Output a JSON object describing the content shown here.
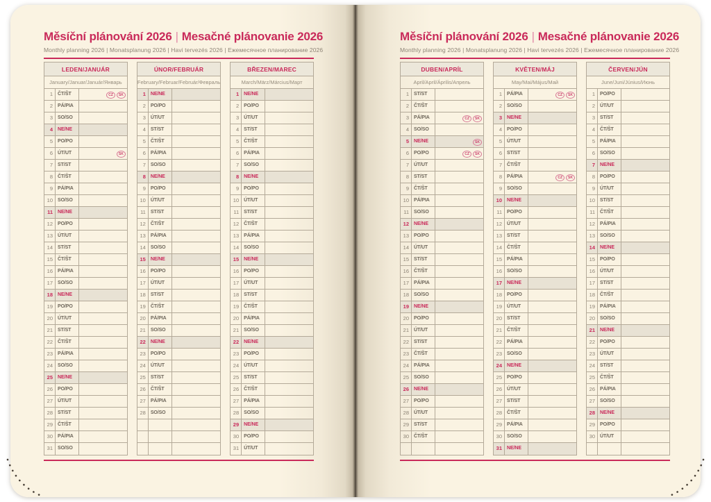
{
  "header": {
    "title_primary": "Měsíční plánování 2026",
    "title_separator": "|",
    "title_secondary": "Mesačné plánovanie 2026",
    "subtitle": "Monthly planning 2026 | Monatsplanung 2026 | Havi tervezés 2026 | Ежемесячное планирование 2026"
  },
  "table": {
    "rows_per_column": 31,
    "sunday_label": "NE/NE"
  },
  "colors": {
    "accent": "#c92a5a",
    "page": "#faf3e2",
    "sunday_bg": "#e8e2d4",
    "border": "#b3a998",
    "header_bg": "#ece7da",
    "day_text": "#6e665a",
    "number_text": "#8a8173",
    "muted_text": "#8d8476",
    "badge": "#cd3f6d"
  },
  "pages": [
    {
      "side": "left",
      "months": [
        {
          "header": "LEDEN/JANUÁR",
          "subheader": "January/Januar/Január/Январь",
          "rows": [
            {
              "n": 1,
              "d": "ČT/ŠT",
              "b": [
                "CZ",
                "SK"
              ]
            },
            {
              "n": 2,
              "d": "PÁ/PIA"
            },
            {
              "n": 3,
              "d": "SO/SO"
            },
            {
              "n": 4,
              "d": "NE/NE"
            },
            {
              "n": 5,
              "d": "PO/PO"
            },
            {
              "n": 6,
              "d": "ÚT/UT",
              "b": [
                "SK"
              ]
            },
            {
              "n": 7,
              "d": "ST/ST"
            },
            {
              "n": 8,
              "d": "ČT/ŠT"
            },
            {
              "n": 9,
              "d": "PÁ/PIA"
            },
            {
              "n": 10,
              "d": "SO/SO"
            },
            {
              "n": 11,
              "d": "NE/NE"
            },
            {
              "n": 12,
              "d": "PO/PO"
            },
            {
              "n": 13,
              "d": "ÚT/UT"
            },
            {
              "n": 14,
              "d": "ST/ST"
            },
            {
              "n": 15,
              "d": "ČT/ŠT"
            },
            {
              "n": 16,
              "d": "PÁ/PIA"
            },
            {
              "n": 17,
              "d": "SO/SO"
            },
            {
              "n": 18,
              "d": "NE/NE"
            },
            {
              "n": 19,
              "d": "PO/PO"
            },
            {
              "n": 20,
              "d": "ÚT/UT"
            },
            {
              "n": 21,
              "d": "ST/ST"
            },
            {
              "n": 22,
              "d": "ČT/ŠT"
            },
            {
              "n": 23,
              "d": "PÁ/PIA"
            },
            {
              "n": 24,
              "d": "SO/SO"
            },
            {
              "n": 25,
              "d": "NE/NE"
            },
            {
              "n": 26,
              "d": "PO/PO"
            },
            {
              "n": 27,
              "d": "ÚT/UT"
            },
            {
              "n": 28,
              "d": "ST/ST"
            },
            {
              "n": 29,
              "d": "ČT/ŠT"
            },
            {
              "n": 30,
              "d": "PÁ/PIA"
            },
            {
              "n": 31,
              "d": "SO/SO"
            }
          ]
        },
        {
          "header": "ÚNOR/FEBRUÁR",
          "subheader": "February/Februar/Február/Февраль",
          "rows": [
            {
              "n": 1,
              "d": "NE/NE"
            },
            {
              "n": 2,
              "d": "PO/PO"
            },
            {
              "n": 3,
              "d": "ÚT/UT"
            },
            {
              "n": 4,
              "d": "ST/ST"
            },
            {
              "n": 5,
              "d": "ČT/ŠT"
            },
            {
              "n": 6,
              "d": "PÁ/PIA"
            },
            {
              "n": 7,
              "d": "SO/SO"
            },
            {
              "n": 8,
              "d": "NE/NE"
            },
            {
              "n": 9,
              "d": "PO/PO"
            },
            {
              "n": 10,
              "d": "ÚT/UT"
            },
            {
              "n": 11,
              "d": "ST/ST"
            },
            {
              "n": 12,
              "d": "ČT/ŠT"
            },
            {
              "n": 13,
              "d": "PÁ/PIA"
            },
            {
              "n": 14,
              "d": "SO/SO"
            },
            {
              "n": 15,
              "d": "NE/NE"
            },
            {
              "n": 16,
              "d": "PO/PO"
            },
            {
              "n": 17,
              "d": "ÚT/UT"
            },
            {
              "n": 18,
              "d": "ST/ST"
            },
            {
              "n": 19,
              "d": "ČT/ŠT"
            },
            {
              "n": 20,
              "d": "PÁ/PIA"
            },
            {
              "n": 21,
              "d": "SO/SO"
            },
            {
              "n": 22,
              "d": "NE/NE"
            },
            {
              "n": 23,
              "d": "PO/PO"
            },
            {
              "n": 24,
              "d": "ÚT/UT"
            },
            {
              "n": 25,
              "d": "ST/ST"
            },
            {
              "n": 26,
              "d": "ČT/ŠT"
            },
            {
              "n": 27,
              "d": "PÁ/PIA"
            },
            {
              "n": 28,
              "d": "SO/SO"
            }
          ]
        },
        {
          "header": "BŘEZEN/MAREC",
          "subheader": "March/März/Március/Март",
          "rows": [
            {
              "n": 1,
              "d": "NE/NE"
            },
            {
              "n": 2,
              "d": "PO/PO"
            },
            {
              "n": 3,
              "d": "ÚT/UT"
            },
            {
              "n": 4,
              "d": "ST/ST"
            },
            {
              "n": 5,
              "d": "ČT/ŠT"
            },
            {
              "n": 6,
              "d": "PÁ/PIA"
            },
            {
              "n": 7,
              "d": "SO/SO"
            },
            {
              "n": 8,
              "d": "NE/NE"
            },
            {
              "n": 9,
              "d": "PO/PO"
            },
            {
              "n": 10,
              "d": "ÚT/UT"
            },
            {
              "n": 11,
              "d": "ST/ST"
            },
            {
              "n": 12,
              "d": "ČT/ŠT"
            },
            {
              "n": 13,
              "d": "PÁ/PIA"
            },
            {
              "n": 14,
              "d": "SO/SO"
            },
            {
              "n": 15,
              "d": "NE/NE"
            },
            {
              "n": 16,
              "d": "PO/PO"
            },
            {
              "n": 17,
              "d": "ÚT/UT"
            },
            {
              "n": 18,
              "d": "ST/ST"
            },
            {
              "n": 19,
              "d": "ČT/ŠT"
            },
            {
              "n": 20,
              "d": "PÁ/PIA"
            },
            {
              "n": 21,
              "d": "SO/SO"
            },
            {
              "n": 22,
              "d": "NE/NE"
            },
            {
              "n": 23,
              "d": "PO/PO"
            },
            {
              "n": 24,
              "d": "ÚT/UT"
            },
            {
              "n": 25,
              "d": "ST/ST"
            },
            {
              "n": 26,
              "d": "ČT/ŠT"
            },
            {
              "n": 27,
              "d": "PÁ/PIA"
            },
            {
              "n": 28,
              "d": "SO/SO"
            },
            {
              "n": 29,
              "d": "NE/NE"
            },
            {
              "n": 30,
              "d": "PO/PO"
            },
            {
              "n": 31,
              "d": "ÚT/UT"
            }
          ]
        }
      ]
    },
    {
      "side": "right",
      "months": [
        {
          "header": "DUBEN/APRÍL",
          "subheader": "April/April/Április/Апрель",
          "rows": [
            {
              "n": 1,
              "d": "ST/ST"
            },
            {
              "n": 2,
              "d": "ČT/ŠT"
            },
            {
              "n": 3,
              "d": "PÁ/PIA",
              "b": [
                "CZ",
                "SK"
              ]
            },
            {
              "n": 4,
              "d": "SO/SO"
            },
            {
              "n": 5,
              "d": "NE/NE",
              "b": [
                "SK"
              ]
            },
            {
              "n": 6,
              "d": "PO/PO",
              "b": [
                "CZ",
                "SK"
              ]
            },
            {
              "n": 7,
              "d": "ÚT/UT"
            },
            {
              "n": 8,
              "d": "ST/ST"
            },
            {
              "n": 9,
              "d": "ČT/ŠT"
            },
            {
              "n": 10,
              "d": "PÁ/PIA"
            },
            {
              "n": 11,
              "d": "SO/SO"
            },
            {
              "n": 12,
              "d": "NE/NE"
            },
            {
              "n": 13,
              "d": "PO/PO"
            },
            {
              "n": 14,
              "d": "ÚT/UT"
            },
            {
              "n": 15,
              "d": "ST/ST"
            },
            {
              "n": 16,
              "d": "ČT/ŠT"
            },
            {
              "n": 17,
              "d": "PÁ/PIA"
            },
            {
              "n": 18,
              "d": "SO/SO"
            },
            {
              "n": 19,
              "d": "NE/NE"
            },
            {
              "n": 20,
              "d": "PO/PO"
            },
            {
              "n": 21,
              "d": "ÚT/UT"
            },
            {
              "n": 22,
              "d": "ST/ST"
            },
            {
              "n": 23,
              "d": "ČT/ŠT"
            },
            {
              "n": 24,
              "d": "PÁ/PIA"
            },
            {
              "n": 25,
              "d": "SO/SO"
            },
            {
              "n": 26,
              "d": "NE/NE"
            },
            {
              "n": 27,
              "d": "PO/PO"
            },
            {
              "n": 28,
              "d": "ÚT/UT"
            },
            {
              "n": 29,
              "d": "ST/ST"
            },
            {
              "n": 30,
              "d": "ČT/ŠT"
            }
          ]
        },
        {
          "header": "KVĚTEN/MÁJ",
          "subheader": "May/Mai/Május/Май",
          "rows": [
            {
              "n": 1,
              "d": "PÁ/PIA",
              "b": [
                "CZ",
                "SK"
              ]
            },
            {
              "n": 2,
              "d": "SO/SO"
            },
            {
              "n": 3,
              "d": "NE/NE"
            },
            {
              "n": 4,
              "d": "PO/PO"
            },
            {
              "n": 5,
              "d": "ÚT/UT"
            },
            {
              "n": 6,
              "d": "ST/ST"
            },
            {
              "n": 7,
              "d": "ČT/ŠT"
            },
            {
              "n": 8,
              "d": "PÁ/PIA",
              "b": [
                "CZ",
                "SK"
              ]
            },
            {
              "n": 9,
              "d": "SO/SO"
            },
            {
              "n": 10,
              "d": "NE/NE"
            },
            {
              "n": 11,
              "d": "PO/PO"
            },
            {
              "n": 12,
              "d": "ÚT/UT"
            },
            {
              "n": 13,
              "d": "ST/ST"
            },
            {
              "n": 14,
              "d": "ČT/ŠT"
            },
            {
              "n": 15,
              "d": "PÁ/PIA"
            },
            {
              "n": 16,
              "d": "SO/SO"
            },
            {
              "n": 17,
              "d": "NE/NE"
            },
            {
              "n": 18,
              "d": "PO/PO"
            },
            {
              "n": 19,
              "d": "ÚT/UT"
            },
            {
              "n": 20,
              "d": "ST/ST"
            },
            {
              "n": 21,
              "d": "ČT/ŠT"
            },
            {
              "n": 22,
              "d": "PÁ/PIA"
            },
            {
              "n": 23,
              "d": "SO/SO"
            },
            {
              "n": 24,
              "d": "NE/NE"
            },
            {
              "n": 25,
              "d": "PO/PO"
            },
            {
              "n": 26,
              "d": "ÚT/UT"
            },
            {
              "n": 27,
              "d": "ST/ST"
            },
            {
              "n": 28,
              "d": "ČT/ŠT"
            },
            {
              "n": 29,
              "d": "PÁ/PIA"
            },
            {
              "n": 30,
              "d": "SO/SO"
            },
            {
              "n": 31,
              "d": "NE/NE"
            }
          ]
        },
        {
          "header": "ČERVEN/JÚN",
          "subheader": "June/Juni/Június/Июнь",
          "rows": [
            {
              "n": 1,
              "d": "PO/PO"
            },
            {
              "n": 2,
              "d": "ÚT/UT"
            },
            {
              "n": 3,
              "d": "ST/ST"
            },
            {
              "n": 4,
              "d": "ČT/ŠT"
            },
            {
              "n": 5,
              "d": "PÁ/PIA"
            },
            {
              "n": 6,
              "d": "SO/SO"
            },
            {
              "n": 7,
              "d": "NE/NE"
            },
            {
              "n": 8,
              "d": "PO/PO"
            },
            {
              "n": 9,
              "d": "ÚT/UT"
            },
            {
              "n": 10,
              "d": "ST/ST"
            },
            {
              "n": 11,
              "d": "ČT/ŠT"
            },
            {
              "n": 12,
              "d": "PÁ/PIA"
            },
            {
              "n": 13,
              "d": "SO/SO"
            },
            {
              "n": 14,
              "d": "NE/NE"
            },
            {
              "n": 15,
              "d": "PO/PO"
            },
            {
              "n": 16,
              "d": "ÚT/UT"
            },
            {
              "n": 17,
              "d": "ST/ST"
            },
            {
              "n": 18,
              "d": "ČT/ŠT"
            },
            {
              "n": 19,
              "d": "PÁ/PIA"
            },
            {
              "n": 20,
              "d": "SO/SO"
            },
            {
              "n": 21,
              "d": "NE/NE"
            },
            {
              "n": 22,
              "d": "PO/PO"
            },
            {
              "n": 23,
              "d": "ÚT/UT"
            },
            {
              "n": 24,
              "d": "ST/ST"
            },
            {
              "n": 25,
              "d": "ČT/ŠT"
            },
            {
              "n": 26,
              "d": "PÁ/PIA"
            },
            {
              "n": 27,
              "d": "SO/SO"
            },
            {
              "n": 28,
              "d": "NE/NE"
            },
            {
              "n": 29,
              "d": "PO/PO"
            },
            {
              "n": 30,
              "d": "ÚT/UT"
            }
          ]
        }
      ]
    }
  ]
}
